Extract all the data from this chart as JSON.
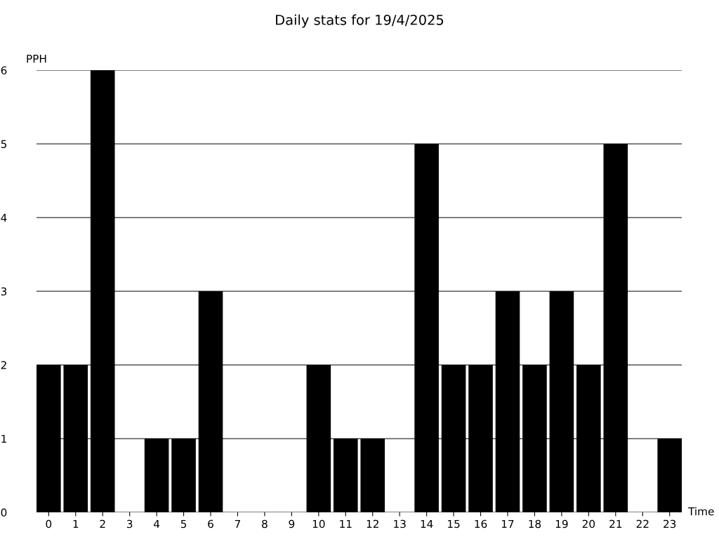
{
  "chart_data": {
    "type": "bar",
    "title": "Daily stats for 19/4/2025",
    "xlabel": "Time",
    "ylabel": "PPH",
    "categories": [
      "0",
      "1",
      "2",
      "3",
      "4",
      "5",
      "6",
      "7",
      "8",
      "9",
      "10",
      "11",
      "12",
      "13",
      "14",
      "15",
      "16",
      "17",
      "18",
      "19",
      "20",
      "21",
      "22",
      "23"
    ],
    "values": [
      2,
      2,
      6,
      0,
      1,
      1,
      3,
      0,
      0,
      0,
      2,
      1,
      1,
      0,
      5,
      2,
      2,
      3,
      2,
      3,
      2,
      5,
      0,
      1
    ],
    "color": "#000000",
    "ylim": [
      0,
      6
    ],
    "yticks": [
      0,
      1,
      2,
      3,
      4,
      5,
      6
    ],
    "grid": "y",
    "legend": false
  }
}
